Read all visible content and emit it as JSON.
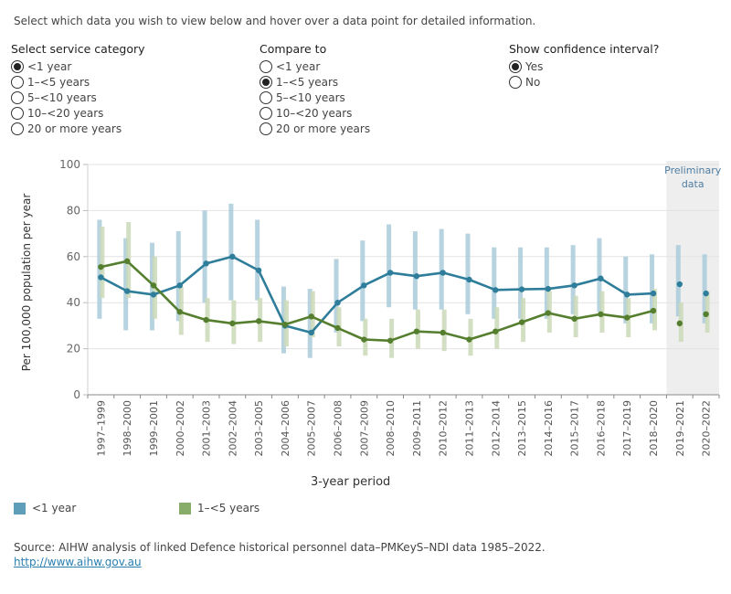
{
  "instructions": "Select which data you wish to view below and hover over a data point for detailed information.",
  "controls": {
    "service_category": {
      "title": "Select service category",
      "options": [
        "<1 year",
        "1–<5 years",
        "5–<10 years",
        "10–<20 years",
        "20 or more years"
      ],
      "selected": 0
    },
    "compare_to": {
      "title": "Compare to",
      "options": [
        "<1 year",
        "1–<5 years",
        "5–<10 years",
        "10–<20 years",
        "20 or more years"
      ],
      "selected": 1
    },
    "confidence": {
      "title": "Show confidence interval?",
      "options": [
        "Yes",
        "No"
      ],
      "selected": 0
    }
  },
  "chart_data": {
    "type": "line",
    "xlabel": "3-year period",
    "ylabel": "Per 100,000 population per year",
    "ylim": [
      0,
      100
    ],
    "yticks": [
      0,
      20,
      40,
      60,
      80,
      100
    ],
    "grid": true,
    "preliminary_label": [
      "Preliminary",
      "data"
    ],
    "preliminary_from_index": 22,
    "categories": [
      "1997–1999",
      "1998–2000",
      "1999–2001",
      "2000–2002",
      "2001–2003",
      "2002–2004",
      "2003–2005",
      "2004–2006",
      "2005–2007",
      "2006–2008",
      "2007–2009",
      "2008–2010",
      "2009–2011",
      "2010–2012",
      "2011–2013",
      "2012–2014",
      "2013–2015",
      "2014–2016",
      "2015–2017",
      "2016–2018",
      "2017–2019",
      "2018–2020",
      "2019–2021",
      "2020–2022"
    ],
    "series": [
      {
        "name": "<1 year",
        "color": "#2e7d9a",
        "ci_color": "#aacbd9",
        "values": [
          51,
          45,
          43.5,
          47.5,
          57,
          60,
          54,
          30,
          27,
          40,
          47.5,
          53,
          51.5,
          53,
          50,
          45.5,
          45.8,
          46,
          47.5,
          50.5,
          43.5,
          44,
          48,
          44
        ],
        "ci_low": [
          33,
          28,
          28,
          32,
          40,
          41,
          41,
          18,
          16,
          27,
          32,
          38,
          37,
          37,
          35,
          33,
          33,
          33,
          35,
          36,
          31,
          31,
          34,
          31
        ],
        "ci_high": [
          76,
          68,
          66,
          71,
          80,
          83,
          76,
          47,
          46,
          59,
          67,
          74,
          71,
          72,
          70,
          64,
          64,
          64,
          65,
          68,
          60,
          61,
          65,
          61
        ]
      },
      {
        "name": "1–<5 years",
        "color": "#557f2f",
        "ci_color": "#cbd9b8",
        "values": [
          55.5,
          58,
          47.5,
          36,
          32.5,
          31,
          32,
          30.5,
          34,
          29,
          24,
          23.5,
          27.5,
          27,
          24,
          27.5,
          31.5,
          35.5,
          33,
          35,
          33.5,
          36.5,
          31,
          35
        ],
        "ci_low": [
          42,
          42,
          33,
          26,
          23,
          22,
          23,
          21,
          25,
          21,
          17,
          16,
          20,
          19,
          17,
          20,
          23,
          27,
          25,
          27,
          25,
          28,
          23,
          27
        ],
        "ci_high": [
          73,
          75,
          60,
          47,
          42,
          41,
          42,
          41,
          45,
          38,
          33,
          33,
          37,
          37,
          33,
          38,
          42,
          45,
          43,
          45,
          42,
          46,
          40,
          45
        ]
      }
    ]
  },
  "legend": {
    "items": [
      {
        "label": "<1 year",
        "color": "#5f9eb8"
      },
      {
        "label": "1–<5 years",
        "color": "#88ad6b"
      }
    ]
  },
  "source": {
    "text": "Source: AIHW analysis of linked Defence historical personnel data–PMKeyS–NDI data 1985–2022.",
    "link": "http://www.aihw.gov.au"
  }
}
